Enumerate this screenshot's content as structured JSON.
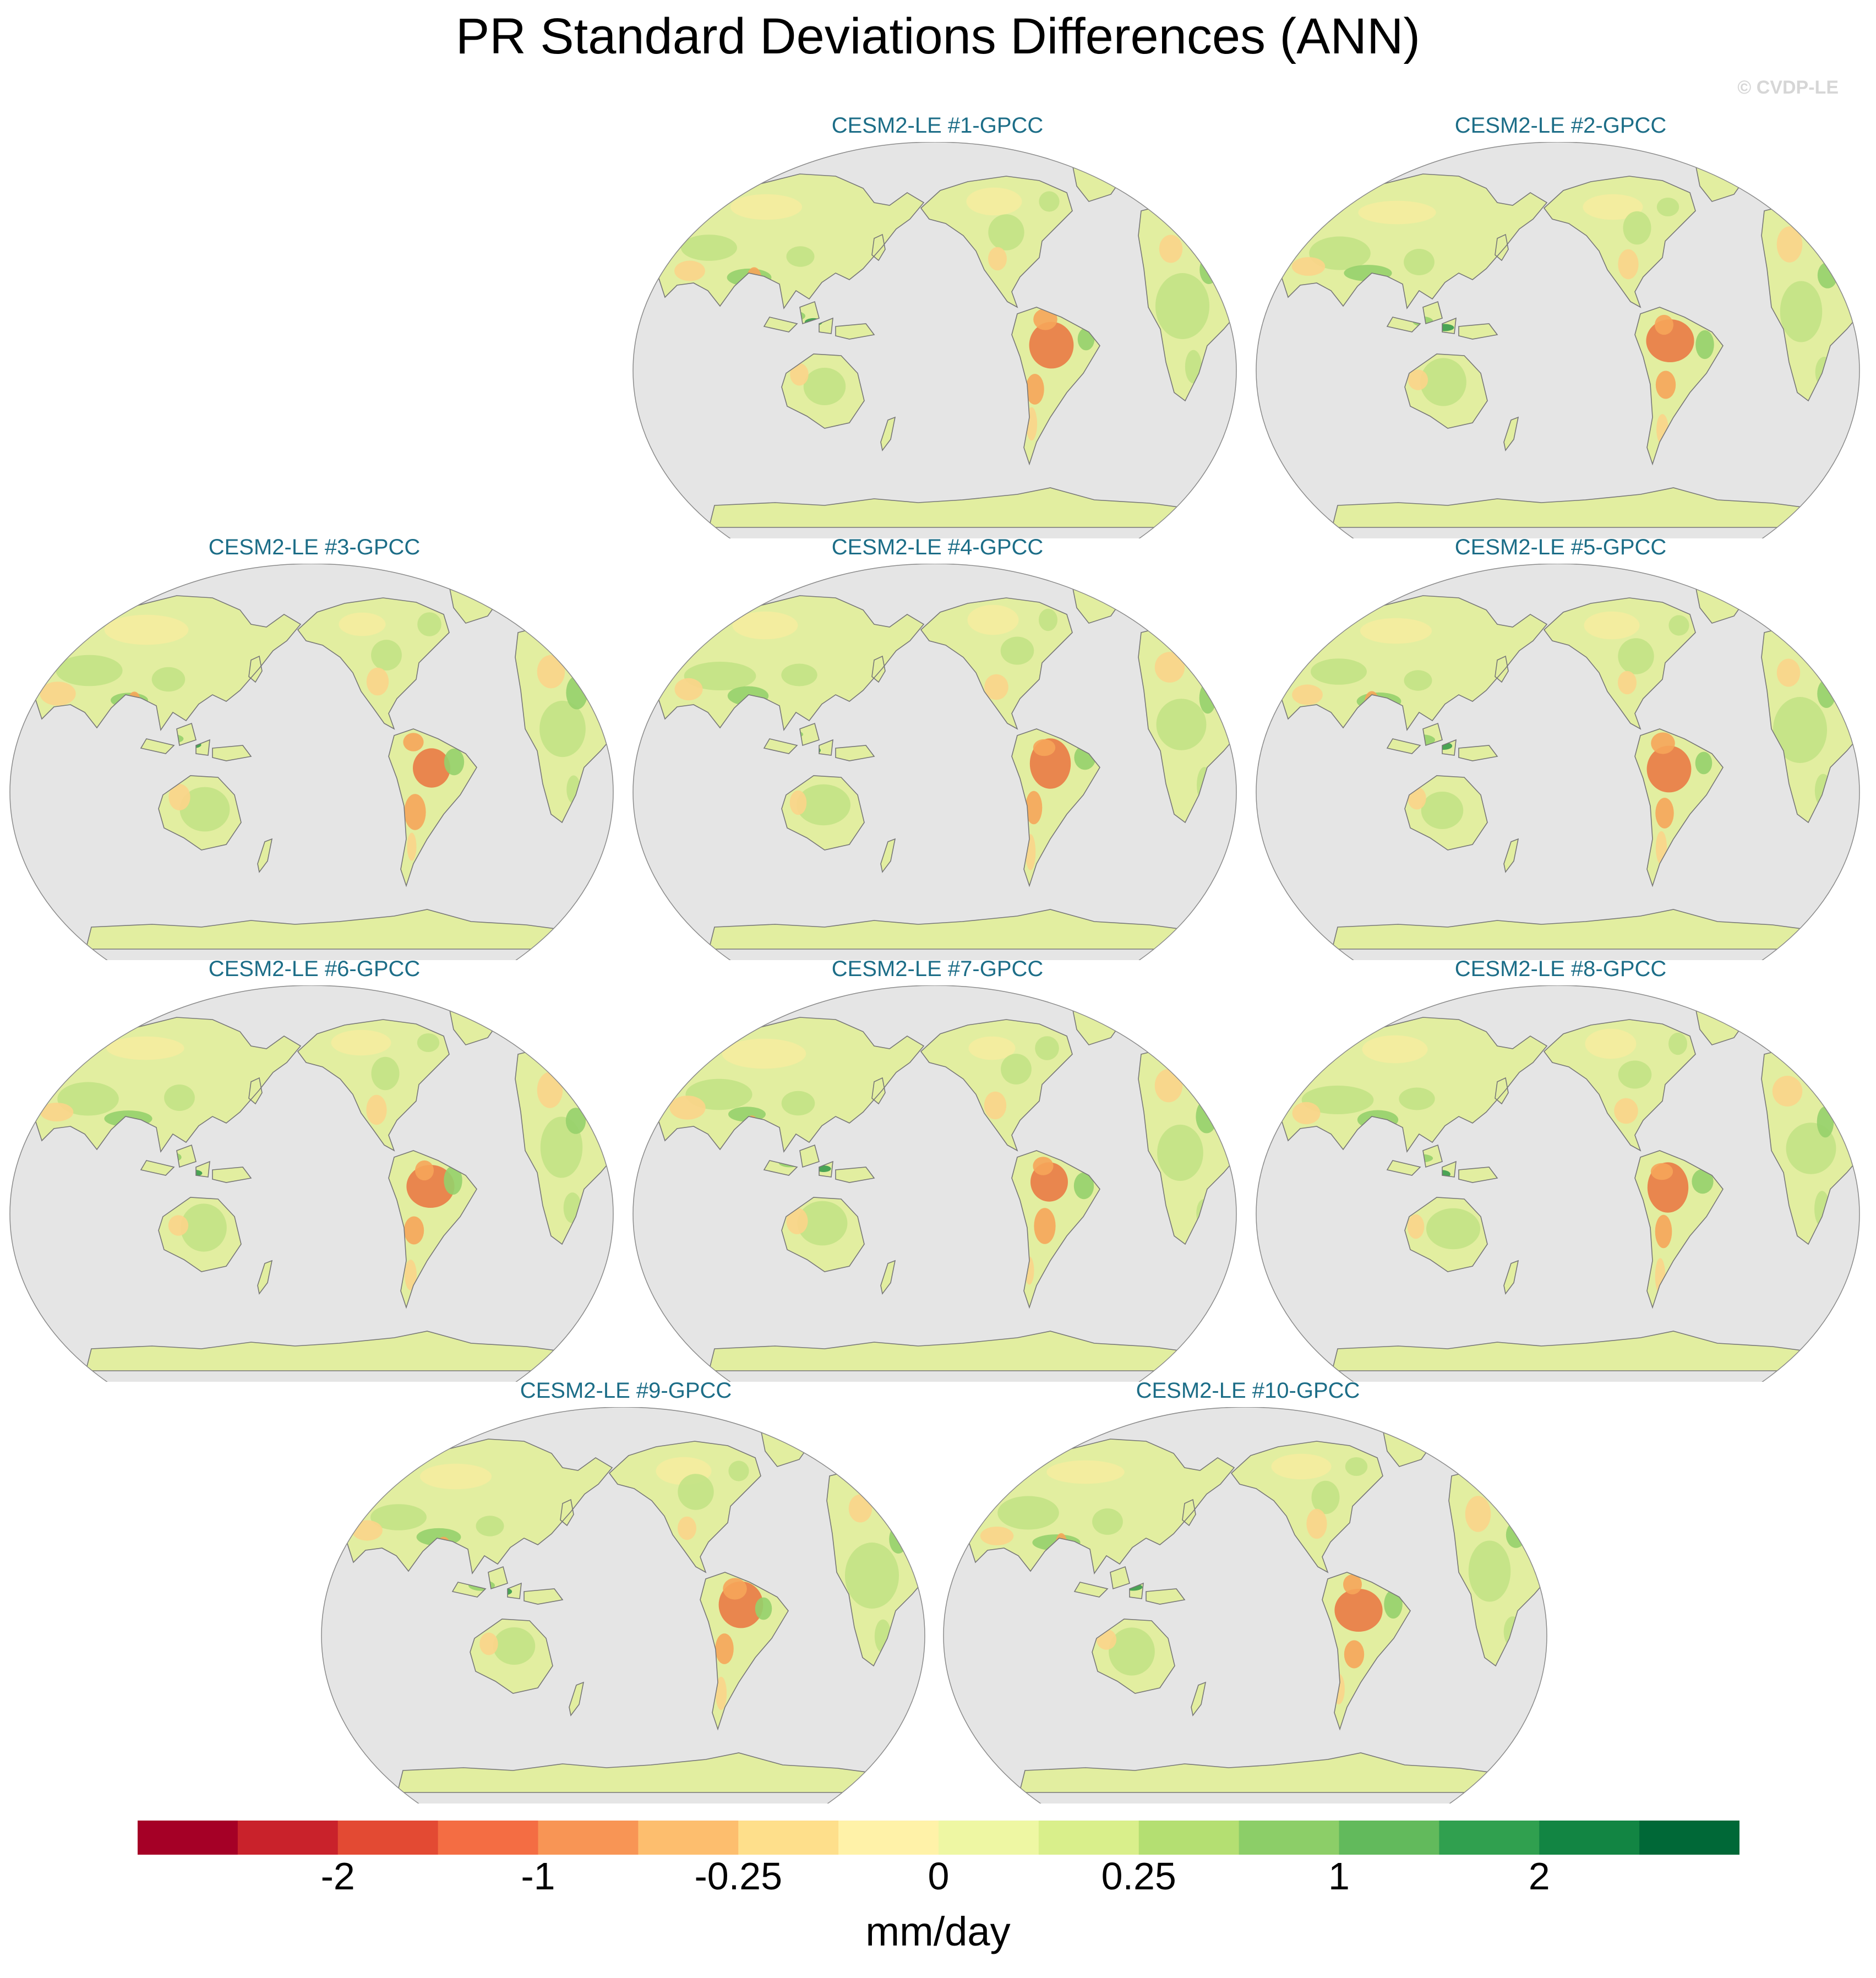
{
  "title": "PR Standard Deviations Differences (ANN)",
  "watermark": "© CVDP-LE",
  "panels": [
    {
      "label": "CESM2-LE #1-GPCC"
    },
    {
      "label": "CESM2-LE #2-GPCC"
    },
    {
      "label": "CESM2-LE #3-GPCC"
    },
    {
      "label": "CESM2-LE #4-GPCC"
    },
    {
      "label": "CESM2-LE #5-GPCC"
    },
    {
      "label": "CESM2-LE #6-GPCC"
    },
    {
      "label": "CESM2-LE #7-GPCC"
    },
    {
      "label": "CESM2-LE #8-GPCC"
    },
    {
      "label": "CESM2-LE #9-GPCC"
    },
    {
      "label": "CESM2-LE #10-GPCC"
    }
  ],
  "colorbar": {
    "units": "mm/day",
    "colors": [
      "#a50026",
      "#c9222b",
      "#e34a33",
      "#f46d43",
      "#f89555",
      "#fdbe6e",
      "#fedf8b",
      "#fff2a8",
      "#eef7a3",
      "#d9ef8b",
      "#b4df72",
      "#8cce68",
      "#62ba5c",
      "#30a04f",
      "#128543",
      "#006837"
    ],
    "tick_labels": [
      "-2",
      "-1",
      "-0.25",
      "0",
      "0.25",
      "1",
      "2"
    ]
  },
  "map_colors": {
    "ocean": "#e5e5e5",
    "coast": "#777777",
    "land_base": "#e2eea0",
    "near_zero_pos": "#dcee95",
    "near_zero_neg": "#f5ec9e",
    "positive_small": "#c3e285",
    "positive_mid": "#96d06b",
    "positive_large": "#3a9b4c",
    "negative_small": "#fbd48a",
    "negative_mid": "#f6a55a",
    "negative_large": "#ea7a45"
  }
}
